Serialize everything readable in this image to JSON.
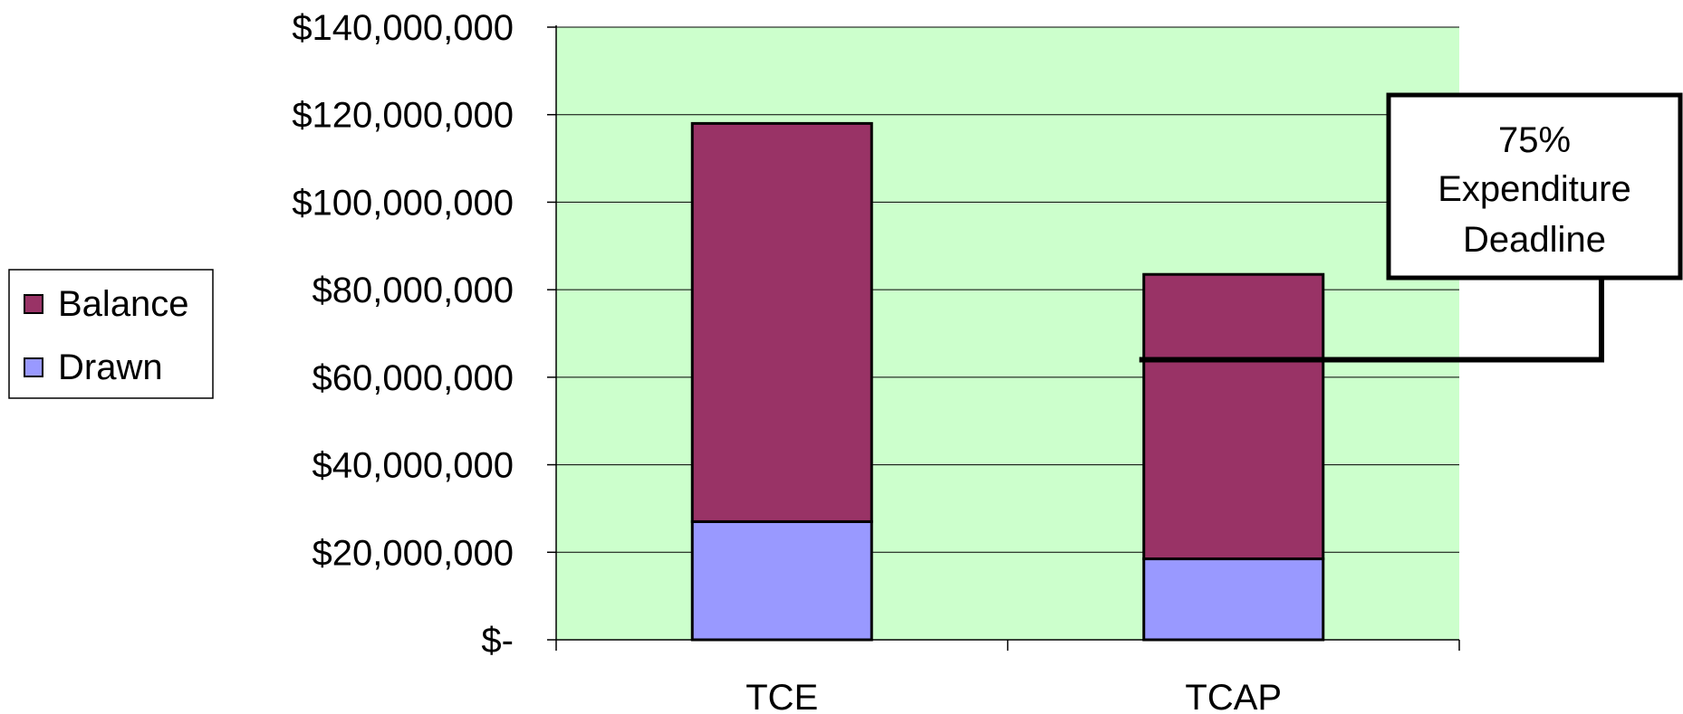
{
  "chart_data": {
    "type": "bar",
    "stacked": true,
    "categories": [
      "TCE",
      "TCAP"
    ],
    "series": [
      {
        "name": "Drawn",
        "values": [
          27000000,
          18500000
        ],
        "color": "#9999ff"
      },
      {
        "name": "Balance",
        "values": [
          91000000,
          65000000
        ],
        "color": "#993366"
      }
    ],
    "ylim": [
      0,
      140000000
    ],
    "y_ticks": [
      0,
      20000000,
      40000000,
      60000000,
      80000000,
      100000000,
      120000000,
      140000000
    ],
    "y_tick_labels": [
      "$-",
      "$20,000,000",
      "$40,000,000",
      "$60,000,000",
      "$80,000,000",
      "$100,000,000",
      "$120,000,000",
      "$140,000,000"
    ],
    "grid": true,
    "plot_background": "#ccffcc",
    "legend_position": "left",
    "legend_entries": [
      "Balance",
      "Drawn"
    ],
    "annotation": {
      "lines": [
        "75%",
        "Expenditure",
        "Deadline"
      ],
      "category": "TCAP",
      "value": 64000000
    }
  }
}
